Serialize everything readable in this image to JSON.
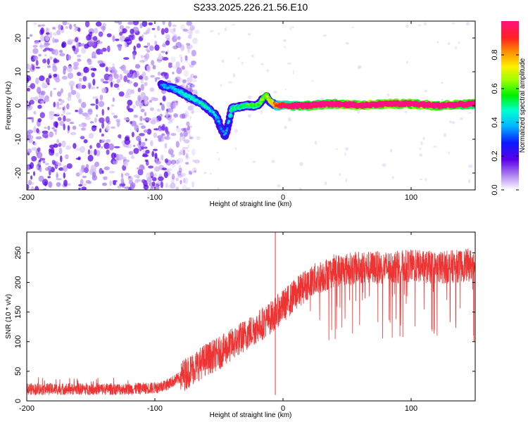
{
  "title": "S233.2025.226.21.56.E10",
  "chart_data": [
    {
      "type": "heatmap",
      "xlabel": "Height of straight line (km)",
      "ylabel": "Frequency (Hz)",
      "xlim": [
        -200,
        150
      ],
      "ylim": [
        -25,
        25
      ],
      "xticks": [
        -200,
        -100,
        0,
        100
      ],
      "yticks": [
        -20,
        -10,
        0,
        10,
        20
      ],
      "colorbar": {
        "label": "Normalized spectral amplitude",
        "range": [
          0,
          1
        ],
        "ticks": [
          0.0,
          0.2,
          0.4,
          0.6,
          0.8
        ],
        "colormap": "purple-blue-cyan-green-yellow-red"
      },
      "ridge": {
        "description": "signal ridge frequency vs height",
        "x": [
          -95,
          -85,
          -75,
          -65,
          -58,
          -52,
          -48,
          -45,
          -40,
          -30,
          -20,
          -13,
          -10,
          -5,
          0,
          20,
          40,
          60,
          80,
          100,
          120,
          150
        ],
        "freq": [
          6,
          5,
          3,
          1,
          -1,
          -3,
          -7,
          -9,
          -1,
          0,
          0,
          3,
          1,
          0,
          0,
          0,
          0.5,
          0,
          0.5,
          0.5,
          0,
          0.5
        ],
        "amplitude": [
          0.2,
          0.25,
          0.3,
          0.3,
          0.3,
          0.25,
          0.2,
          0.15,
          0.35,
          0.4,
          0.45,
          0.5,
          0.6,
          0.75,
          0.85,
          0.95,
          1.0,
          1.0,
          1.0,
          1.0,
          1.0,
          0.95
        ]
      },
      "noise_region": {
        "x_from": -200,
        "x_to": -75,
        "amplitude": "low (~0.05-0.1)"
      }
    },
    {
      "type": "line",
      "xlabel": "Height of straight line (km)",
      "ylabel": "SNR (10 * v/v)",
      "xlim": [
        -200,
        150
      ],
      "ylim": [
        0,
        285
      ],
      "xticks": [
        -200,
        -100,
        0,
        100
      ],
      "yticks": [
        0,
        50,
        100,
        150,
        200,
        250
      ],
      "series": [
        {
          "name": "SNR",
          "color": "#ee3333",
          "envelope_x": [
            -200,
            -160,
            -120,
            -100,
            -90,
            -80,
            -70,
            -60,
            -50,
            -40,
            -30,
            -20,
            -10,
            0,
            10,
            20,
            30,
            40,
            60,
            80,
            100,
            120,
            150
          ],
          "envelope_mean": [
            20,
            20,
            20,
            22,
            28,
            40,
            55,
            70,
            80,
            95,
            110,
            125,
            140,
            160,
            180,
            200,
            210,
            220,
            225,
            225,
            228,
            225,
            230
          ],
          "spikes": [
            {
              "x": -6,
              "value": 285
            },
            {
              "x": -6,
              "value": 10
            },
            {
              "x": 149,
              "value": 100
            }
          ]
        }
      ]
    }
  ]
}
